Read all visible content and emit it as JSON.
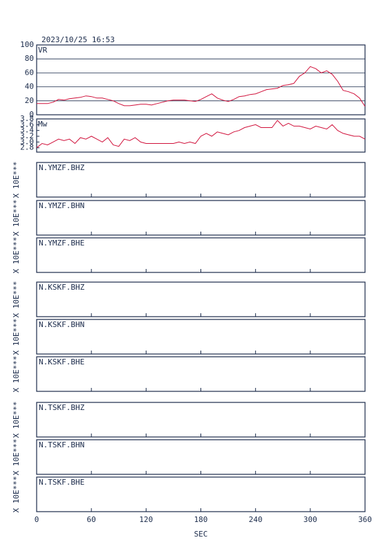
{
  "chart_data": [
    {
      "type": "line",
      "title": "2023/10/25 16:53",
      "ylabel": "VR",
      "color": "#d0103a",
      "grid": true,
      "x": [
        0,
        6,
        12,
        18,
        24,
        30,
        36,
        42,
        48,
        54,
        60,
        66,
        72,
        78,
        84,
        90,
        96,
        102,
        108,
        114,
        120,
        126,
        132,
        138,
        144,
        150,
        156,
        162,
        168,
        174,
        180,
        186,
        192,
        198,
        204,
        210,
        216,
        222,
        228,
        234,
        240,
        246,
        252,
        258,
        264,
        270,
        276,
        282,
        288,
        294,
        300,
        306,
        312,
        318,
        324,
        330,
        336,
        342,
        348,
        354,
        360
      ],
      "values": [
        16,
        16,
        16,
        18,
        22,
        21,
        23,
        24,
        25,
        27,
        26,
        24,
        24,
        22,
        20,
        16,
        13,
        13,
        14,
        15,
        15,
        14,
        16,
        18,
        20,
        21,
        21,
        21,
        20,
        19,
        22,
        26,
        30,
        24,
        21,
        19,
        22,
        26,
        27,
        29,
        30,
        33,
        36,
        37,
        38,
        42,
        43,
        45,
        55,
        60,
        69,
        66,
        60,
        63,
        58,
        48,
        35,
        33,
        30,
        24,
        12
      ],
      "xlim": [
        0,
        360
      ],
      "ylim": [
        0,
        100
      ],
      "yticks": [
        0,
        20,
        40,
        60,
        80,
        100
      ]
    },
    {
      "type": "line",
      "ylabel": "Mw",
      "color": "#d0103a",
      "grid": false,
      "x": [
        0,
        6,
        12,
        18,
        24,
        30,
        36,
        42,
        48,
        54,
        60,
        66,
        72,
        78,
        84,
        90,
        96,
        102,
        108,
        114,
        120,
        126,
        132,
        138,
        144,
        150,
        156,
        162,
        168,
        174,
        180,
        186,
        192,
        198,
        204,
        210,
        216,
        222,
        228,
        234,
        240,
        246,
        252,
        258,
        264,
        270,
        276,
        282,
        288,
        294,
        300,
        306,
        312,
        318,
        324,
        330,
        336,
        342,
        348,
        354,
        360
      ],
      "values": [
        2.8,
        2.95,
        2.9,
        3.0,
        3.1,
        3.05,
        3.1,
        2.95,
        3.15,
        3.1,
        3.2,
        3.1,
        3.0,
        3.15,
        2.9,
        2.85,
        3.1,
        3.05,
        3.15,
        3.0,
        2.95,
        2.95,
        2.95,
        2.95,
        2.95,
        2.95,
        3.0,
        2.95,
        3.0,
        2.95,
        3.2,
        3.3,
        3.2,
        3.35,
        3.3,
        3.25,
        3.35,
        3.4,
        3.5,
        3.55,
        3.6,
        3.5,
        3.5,
        3.5,
        3.75,
        3.55,
        3.65,
        3.55,
        3.55,
        3.5,
        3.45,
        3.55,
        3.5,
        3.45,
        3.6,
        3.4,
        3.3,
        3.25,
        3.2,
        3.2,
        3.1
      ],
      "xlim": [
        0,
        360
      ],
      "ylim": [
        2.65,
        3.8
      ],
      "yticks": [
        2.8,
        {
          "value": 3,
          "label": "3.0"
        },
        3.2,
        3.4,
        3.6,
        3.8
      ]
    },
    {
      "type": "panels",
      "ylabel": "X 10E***",
      "panels": [
        "N.YMZF.BHZ",
        "N.YMZF.BHN",
        "N.YMZF.BHE",
        "N.KSKF.BHZ",
        "N.KSKF.BHN",
        "N.KSKF.BHE",
        "N.TSKF.BHZ",
        "N.TSKF.BHN",
        "N.TSKF.BHE"
      ],
      "xlim": [
        0,
        360
      ],
      "xticks": [
        0,
        60,
        120,
        180,
        240,
        300,
        360
      ],
      "xlabel": "SEC"
    }
  ]
}
